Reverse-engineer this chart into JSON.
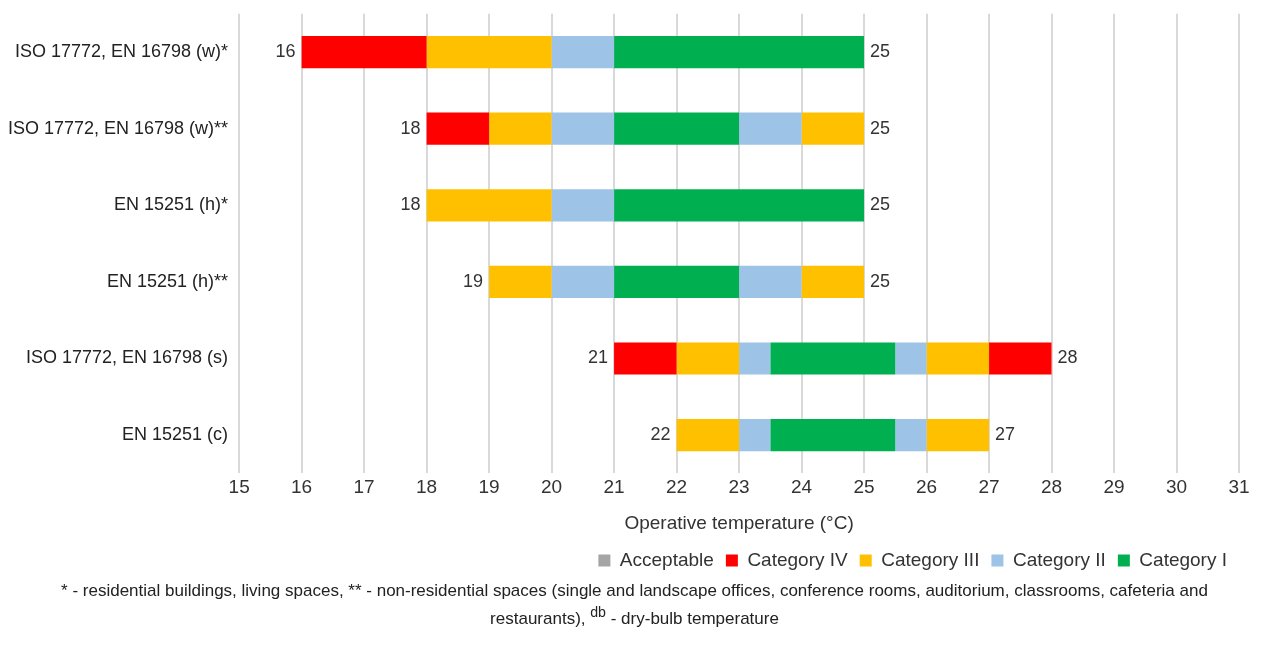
{
  "chart_data": {
    "type": "bar",
    "orientation": "horizontal",
    "categories": [
      "ISO 17772, EN 16798 (w)*",
      "ISO 17772, EN 16798 (w)**",
      "EN 15251 (h)*",
      "EN 15251 (h)**",
      "ISO 17772, EN 16798 (s)",
      "EN 15251 (c)"
    ],
    "series": [
      {
        "name": "Acceptable",
        "color": "#a5a5a5",
        "values": [
          null,
          null,
          null,
          null,
          null,
          null
        ]
      },
      {
        "name": "Category IV",
        "color": "#ff0000",
        "base": [
          16,
          18,
          null,
          null,
          21,
          null
        ],
        "values": [
          2,
          1,
          null,
          null,
          1,
          null
        ]
      },
      {
        "name": "Category III",
        "color": "#ffc000",
        "base": [
          18,
          19,
          18,
          19,
          22,
          22
        ],
        "values": [
          2,
          1,
          2,
          1,
          1,
          1
        ]
      },
      {
        "name": "Category II",
        "color": "#9dc3e6",
        "base": [
          20,
          20,
          20,
          20,
          23,
          23
        ],
        "values": [
          1,
          1,
          1,
          1,
          0.5,
          0.5
        ]
      },
      {
        "name": "Category I",
        "color": "#00b050",
        "base": [
          21,
          21,
          21,
          21,
          23.5,
          23.5
        ],
        "values": [
          4,
          2,
          4,
          2,
          2,
          2
        ]
      },
      {
        "color": "#9dc3e6",
        "base": [
          null,
          23,
          null,
          23,
          25.5,
          25.5
        ],
        "values": [
          null,
          1,
          null,
          1,
          0.5,
          0.5
        ]
      },
      {
        "color": "#ffc000",
        "base": [
          null,
          24,
          null,
          24,
          26,
          26
        ],
        "values": [
          null,
          1,
          null,
          1,
          1,
          1
        ]
      },
      {
        "color": "#ff0000",
        "base": [
          null,
          null,
          null,
          null,
          27,
          null
        ],
        "values": [
          null,
          null,
          null,
          null,
          1,
          null
        ]
      }
    ],
    "xlim": [
      15,
      31
    ],
    "xticks": [
      15,
      16,
      17,
      18,
      19,
      20,
      21,
      22,
      23,
      24,
      25,
      26,
      27,
      28,
      29,
      30,
      31
    ],
    "xlabel": "Operative temperature (°C)",
    "grid": "x",
    "legend": "bottom",
    "annotations": [
      {
        "text": "16",
        "x": 16,
        "y": "ISO 17772, EN 16798 (w)*"
      },
      {
        "text": "25",
        "x": 25,
        "y": "ISO 17772, EN 16798 (w)*"
      },
      {
        "text": "18",
        "x": 18,
        "y": "ISO 17772, EN 16798 (w)**"
      },
      {
        "text": "25",
        "x": 25,
        "y": "ISO 17772, EN 16798 (w)**"
      },
      {
        "text": "18",
        "x": 18,
        "y": "EN 15251 (h)*"
      },
      {
        "text": "25",
        "x": 25,
        "y": "EN 15251 (h)*"
      },
      {
        "text": "19",
        "x": 19,
        "y": "EN 15251 (h)**"
      },
      {
        "text": "25",
        "x": 25,
        "y": "EN 15251 (h)**"
      },
      {
        "text": "21",
        "x": 21,
        "y": "ISO 17772, EN 16798 (s)"
      },
      {
        "text": "28",
        "x": 28,
        "y": "ISO 17772, EN 16798 (s)"
      },
      {
        "text": "22",
        "x": 22,
        "y": "EN 15251 (c)"
      },
      {
        "text": "27",
        "x": 27,
        "y": "EN 15251 (c)"
      },
      "* - residential buildings, living spaces, ** - non-residential spaces (single and landscape offices, conference rooms, auditorium, classrooms, cafeteria and restaurants), $^{db}$ - dry-bulb temperature"
    ]
  }
}
